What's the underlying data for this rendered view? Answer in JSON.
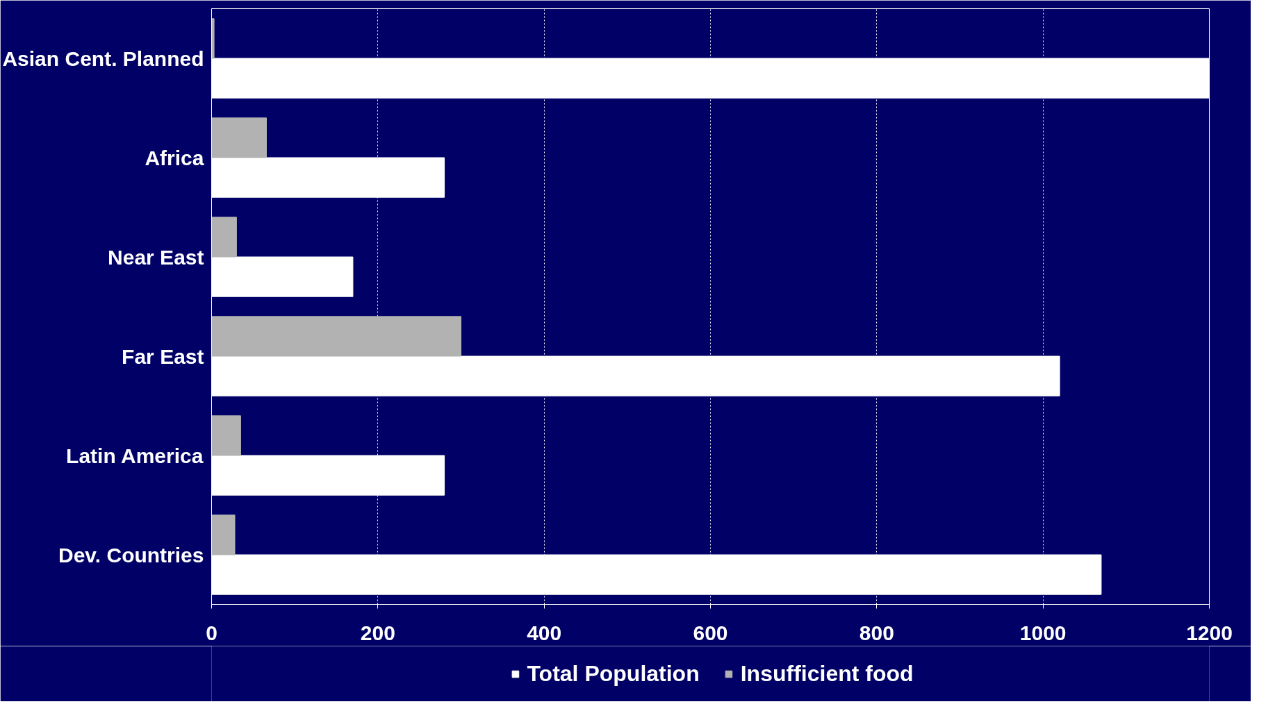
{
  "chart_data": {
    "type": "bar",
    "orientation": "horizontal",
    "categories": [
      "Asian Cent. Planned",
      "Africa",
      "Near East",
      "Far East",
      "Latin America",
      "Dev. Countries"
    ],
    "series": [
      {
        "name": "Total Population",
        "color": "#ffffff",
        "values": [
          1200,
          280,
          170,
          1020,
          280,
          1070
        ]
      },
      {
        "name": "Insufficient food",
        "color": "#b2b2b2",
        "values": [
          3,
          66,
          30,
          300,
          35,
          28
        ]
      }
    ],
    "xlim": [
      0,
      1200
    ],
    "xticks": [
      0,
      200,
      400,
      600,
      800,
      1000,
      1200
    ],
    "grid": "x",
    "legend": "bottom"
  }
}
